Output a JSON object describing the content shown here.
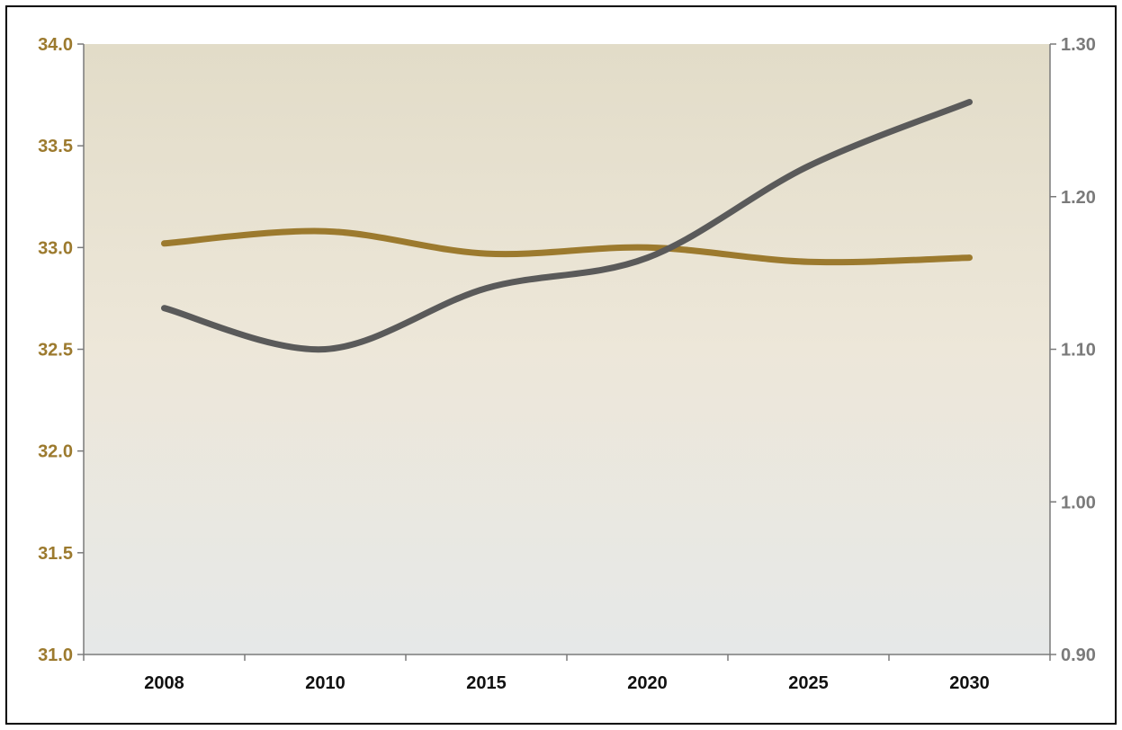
{
  "chart_data": {
    "type": "line",
    "title": "",
    "xlabel": "",
    "ylabel": "",
    "categories": [
      "2008",
      "2010",
      "2015",
      "2020",
      "2025",
      "2030"
    ],
    "y_left": {
      "range": [
        31.0,
        34.0
      ],
      "ticks": [
        31.0,
        31.5,
        32.0,
        32.5,
        33.0,
        33.5,
        34.0
      ],
      "tick_labels": [
        "31.0",
        "31.5",
        "32.0",
        "32.5",
        "33.0",
        "33.5",
        "34.0"
      ],
      "color": "#9c7a2e"
    },
    "y_right": {
      "range": [
        0.9,
        1.3
      ],
      "ticks": [
        0.9,
        1.0,
        1.1,
        1.2,
        1.3
      ],
      "tick_labels": [
        "0.90",
        "1.00",
        "1.10",
        "1.20",
        "1.30"
      ],
      "color": "#7a7a7a"
    },
    "series": [
      {
        "axis": "left",
        "color": "#9c7a2e",
        "values": [
          33.02,
          33.08,
          32.97,
          33.0,
          32.93,
          32.95
        ]
      },
      {
        "axis": "right",
        "color": "#5a5a5a",
        "values": [
          1.127,
          1.1,
          1.14,
          1.16,
          1.22,
          1.262
        ]
      }
    ],
    "grid": false,
    "legend": "none",
    "background_gradient": [
      "#e2dcc8",
      "#ede7d9",
      "#e6e8e8"
    ]
  }
}
